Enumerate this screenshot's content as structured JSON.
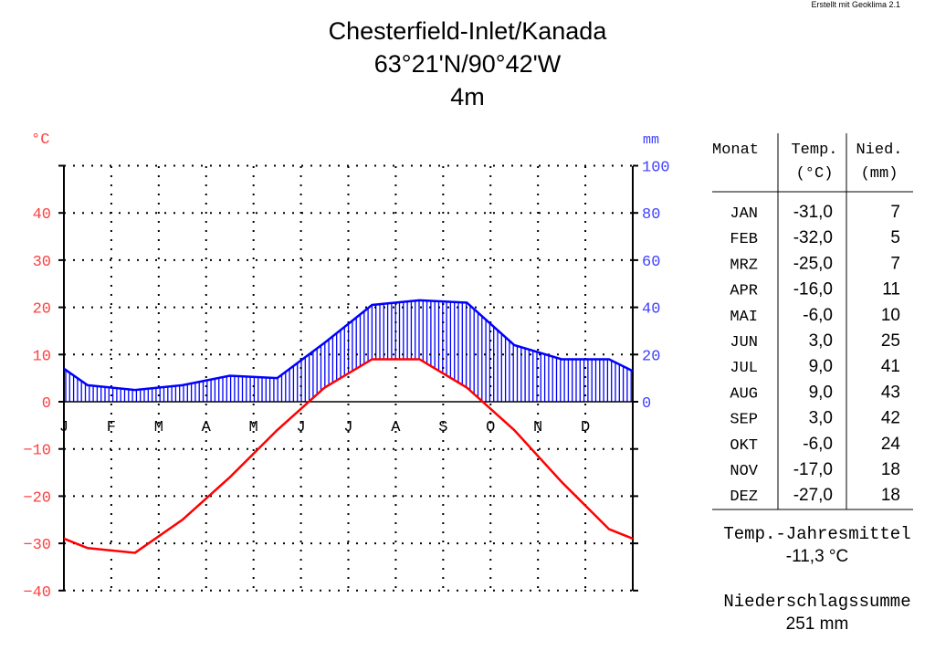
{
  "credit": "Erstellt mit Geoklima 2.1",
  "header": {
    "station": "Chesterfield-Inlet/Kanada",
    "coords": "63°21'N/90°42'W",
    "elevation": "4m"
  },
  "chart_data": {
    "type": "climate-diagram",
    "left_axis": {
      "unit": "°C",
      "ticks": [
        "40",
        "30",
        "20",
        "10",
        "0",
        "−10",
        "−20",
        "−30",
        "−40"
      ],
      "range": [
        -40,
        50
      ]
    },
    "right_axis": {
      "unit": "mm",
      "ticks": [
        "100",
        "80",
        "60",
        "40",
        "20",
        "0"
      ],
      "range": [
        0,
        100
      ]
    },
    "months": [
      "J",
      "F",
      "M",
      "A",
      "M",
      "J",
      "J",
      "A",
      "S",
      "O",
      "N",
      "D"
    ],
    "series": [
      {
        "name": "Temp.",
        "unit": "°C",
        "color": "#ff0000",
        "values": [
          -31.0,
          -32.0,
          -25.0,
          -16.0,
          -6.0,
          3.0,
          9.0,
          9.0,
          3.0,
          -6.0,
          -17.0,
          -27.0
        ]
      },
      {
        "name": "Nied.",
        "unit": "mm",
        "color": "#0000ff",
        "values": [
          7,
          5,
          7,
          11,
          10,
          25,
          41,
          43,
          42,
          24,
          18,
          18
        ]
      }
    ],
    "grid": true
  },
  "table": {
    "headers": {
      "month": "Monat",
      "temp": "Temp.",
      "temp_unit": "(°C)",
      "prec": "Nied.",
      "prec_unit": "(mm)"
    },
    "rows": [
      {
        "m": "JAN",
        "t": "-31,0",
        "p": "7"
      },
      {
        "m": "FEB",
        "t": "-32,0",
        "p": "5"
      },
      {
        "m": "MRZ",
        "t": "-25,0",
        "p": "7"
      },
      {
        "m": "APR",
        "t": "-16,0",
        "p": "11"
      },
      {
        "m": "MAI",
        "t": "-6,0",
        "p": "10"
      },
      {
        "m": "JUN",
        "t": "3,0",
        "p": "25"
      },
      {
        "m": "JUL",
        "t": "9,0",
        "p": "41"
      },
      {
        "m": "AUG",
        "t": "9,0",
        "p": "43"
      },
      {
        "m": "SEP",
        "t": "3,0",
        "p": "42"
      },
      {
        "m": "OKT",
        "t": "-6,0",
        "p": "24"
      },
      {
        "m": "NOV",
        "t": "-17,0",
        "p": "18"
      },
      {
        "m": "DEZ",
        "t": "-27,0",
        "p": "18"
      }
    ]
  },
  "summary": {
    "temp_label": "Temp.-Jahresmittel",
    "temp_value": "-11,3 °C",
    "prec_label": "Niederschlagssumme",
    "prec_value": "251 mm"
  }
}
